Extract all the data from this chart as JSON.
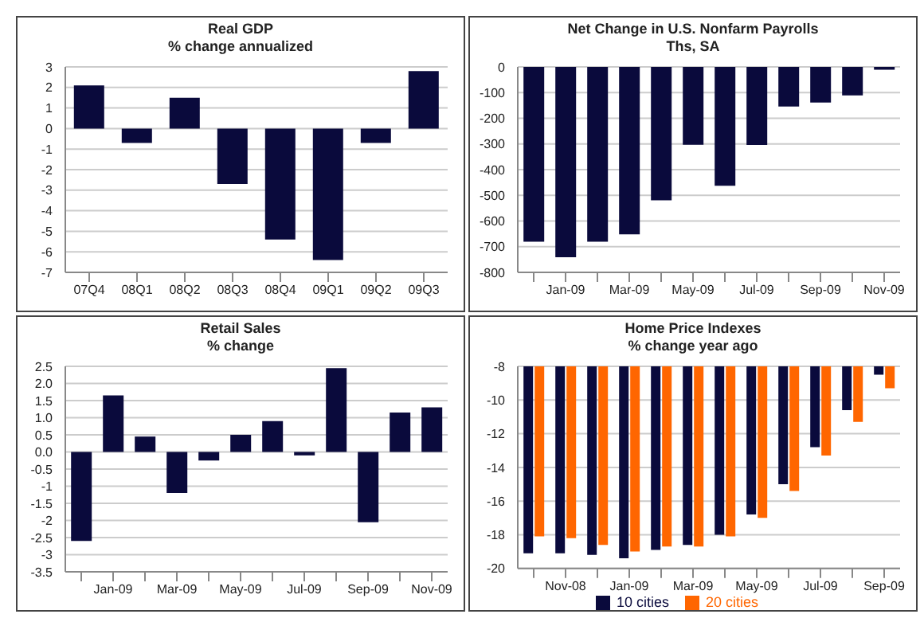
{
  "chart_data": [
    {
      "type": "bar",
      "title": "Real GDP",
      "subtitle": "% change annualized",
      "categories": [
        "07Q4",
        "08Q1",
        "08Q2",
        "08Q3",
        "08Q4",
        "09Q1",
        "09Q2",
        "09Q3"
      ],
      "values": [
        2.1,
        -0.7,
        1.5,
        -2.7,
        -5.4,
        -6.4,
        -0.7,
        2.8
      ],
      "color": "#0a0a3c",
      "ylim": [
        -7,
        3
      ],
      "yticks": [
        -7,
        -6,
        -5,
        -4,
        -3,
        -2,
        -1,
        0,
        1,
        2,
        3
      ],
      "grid": "y",
      "legend": false
    },
    {
      "type": "bar",
      "title": "Net Change in U.S. Nonfarm Payrolls",
      "subtitle": "Ths, SA",
      "categories": [
        null,
        "Jan-09",
        null,
        "Mar-09",
        null,
        "May-09",
        null,
        "Jul-09",
        null,
        "Sep-09",
        null,
        "Nov-09"
      ],
      "values": [
        -681,
        -741,
        -681,
        -652,
        -519,
        -303,
        -463,
        -304,
        -154,
        -139,
        -111,
        -11
      ],
      "color": "#0a0a3c",
      "ylim": [
        -800,
        0
      ],
      "yticks": [
        -800,
        -700,
        -600,
        -500,
        -400,
        -300,
        -200,
        -100,
        0
      ],
      "grid": "y",
      "legend": false
    },
    {
      "type": "bar",
      "title": "Retail Sales",
      "subtitle": "% change",
      "categories": [
        null,
        "Jan-09",
        null,
        "Mar-09",
        null,
        "May-09",
        null,
        "Jul-09",
        null,
        "Sep-09",
        null,
        "Nov-09"
      ],
      "values": [
        -2.6,
        1.65,
        0.45,
        -1.2,
        -0.25,
        0.5,
        0.9,
        -0.1,
        2.45,
        -2.05,
        1.15,
        1.3
      ],
      "color": "#0a0a3c",
      "ylim": [
        -3.5,
        2.5
      ],
      "yticks": [
        -3.5,
        -3,
        -2.5,
        -2,
        -1.5,
        -1,
        -0.5,
        {
          "value": 0,
          "label": "0.0"
        },
        0.5,
        {
          "value": 1,
          "label": "1.0"
        },
        1.5,
        {
          "value": 2,
          "label": "2.0"
        },
        2.5
      ],
      "grid": "y",
      "legend": false
    },
    {
      "type": "bar",
      "title": "Home Price Indexes",
      "subtitle": "% change year ago",
      "categories": [
        null,
        "Nov-08",
        null,
        "Jan-09",
        null,
        "Mar-09",
        null,
        "May-09",
        null,
        "Jul-09",
        null,
        "Sep-09"
      ],
      "series": [
        {
          "name": "10 cities",
          "color": "#0a0a3c",
          "values": [
            -19.1,
            -19.1,
            -19.2,
            -19.4,
            -18.9,
            -18.6,
            -18.0,
            -16.8,
            -15.0,
            -12.8,
            -10.6,
            -8.5
          ]
        },
        {
          "name": "20 cities",
          "color": "#ff6600",
          "values": [
            -18.1,
            -18.2,
            -18.6,
            -19.0,
            -18.7,
            -18.7,
            -18.1,
            -17.0,
            -15.4,
            -13.3,
            -11.3,
            -9.3
          ]
        }
      ],
      "ylim": [
        -20,
        -8
      ],
      "yticks": [
        -20,
        -18,
        -16,
        -14,
        -12,
        -10,
        -8
      ],
      "grid": "y",
      "legend": "bottom"
    }
  ]
}
